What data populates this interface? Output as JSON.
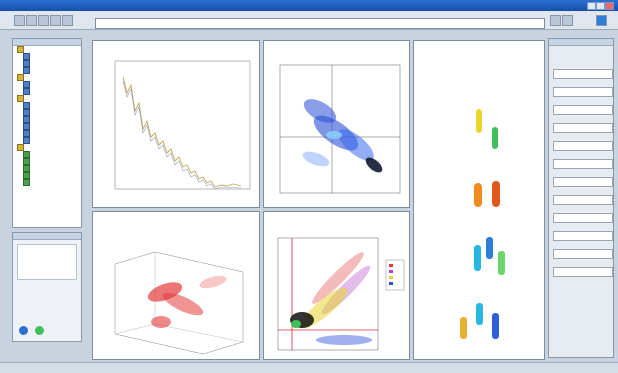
{
  "window": {
    "title": ""
  },
  "address": {
    "text": ""
  },
  "plots": {
    "line_plot": {
      "title": "",
      "subtitle": ""
    },
    "density_top": {
      "title": "",
      "subtitle": ""
    },
    "strip_plot": {
      "title": "",
      "subtitle": ""
    },
    "scatter3d": {
      "title": "",
      "subtitle": ""
    },
    "density_bottom": {
      "title": "",
      "subtitle": ""
    }
  },
  "colors": {
    "accent": "#1f5fc2",
    "panel_bg": "#ffffff",
    "density_blue": "#2a4fd6",
    "density_red": "#e23a3a",
    "strip_orange": "#f28a1e",
    "strip_cyan": "#27b7e0",
    "strip_yellow": "#e8d52f",
    "strip_green": "#3fbf5a"
  },
  "icons": {
    "tree": [
      "folder-icon",
      "table-icon",
      "chart-icon"
    ],
    "left_bottom": [
      "gear-icon",
      "green-dot-icon"
    ]
  }
}
